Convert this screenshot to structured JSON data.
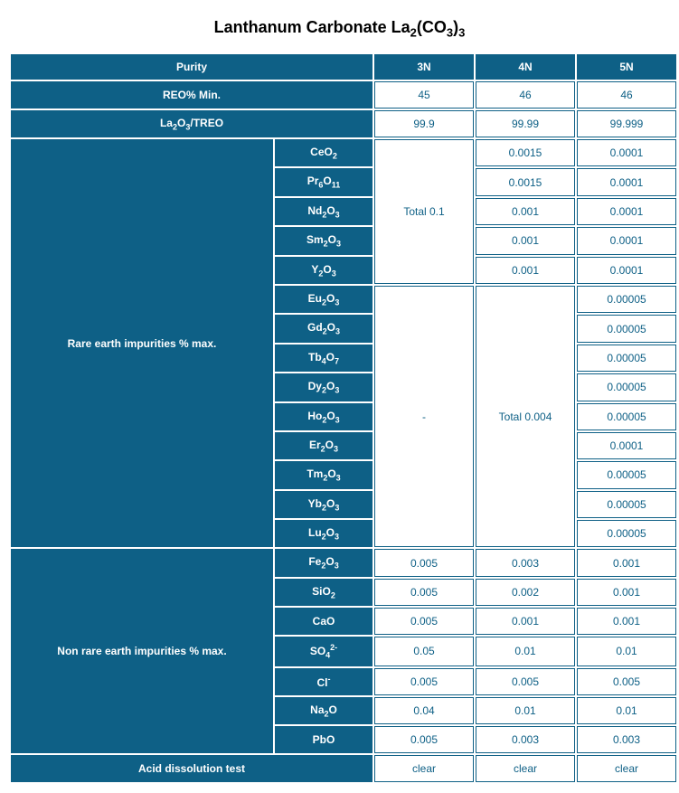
{
  "title_pre": "Lanthanum Carbonate  La",
  "title_sub1": "2",
  "title_mid": "(CO",
  "title_sub2": "3",
  "title_post": ")",
  "title_sub3": "3",
  "header": {
    "purity": "Purity",
    "c3n": "3N",
    "c4n": "4N",
    "c5n": "5N",
    "reo": "REO% Min.",
    "reo_3n": "45",
    "reo_4n": "46",
    "reo_5n": "46",
    "la2o3": "/TREO",
    "la_3n": "99.9",
    "la_4n": "99.99",
    "la_5n": "99.999"
  },
  "rare_label": "Rare earth impurities % max.",
  "total01": "Total 0.1",
  "dash": "-",
  "total0004": "Total 0.004",
  "rare": {
    "CeO2_4n": "0.0015",
    "CeO2_5n": "0.0001",
    "Pr6O11_4n": "0.0015",
    "Pr6O11_5n": "0.0001",
    "Nd2O3_4n": "0.001",
    "Nd2O3_5n": "0.0001",
    "Sm2O3_4n": "0.001",
    "Sm2O3_5n": "0.0001",
    "Y2O3_4n": "0.001",
    "Y2O3_5n": "0.0001",
    "Eu2O3_5n": "0.00005",
    "Gd2O3_5n": "0.00005",
    "Tb4O7_5n": "0.00005",
    "Dy2O3_5n": "0.00005",
    "Ho2O3_5n": "0.00005",
    "Er2O3_5n": "0.0001",
    "Tm2O3_5n": "0.00005",
    "Yb2O3_5n": "0.00005",
    "Lu2O3_5n": "0.00005"
  },
  "nonrare_label": "Non rare earth impurities % max.",
  "nonrare": {
    "Fe2O3_3n": "0.005",
    "Fe2O3_4n": "0.003",
    "Fe2O3_5n": "0.001",
    "SiO2_3n": "0.005",
    "SiO2_4n": "0.002",
    "SiO2_5n": "0.001",
    "CaO_3n": "0.005",
    "CaO_4n": "0.001",
    "CaO_5n": "0.001",
    "SO4_3n": "0.05",
    "SO4_4n": "0.01",
    "SO4_5n": "0.01",
    "Cl_3n": "0.005",
    "Cl_4n": "0.005",
    "Cl_5n": "0.005",
    "Na2O_3n": "0.04",
    "Na2O_4n": "0.01",
    "Na2O_5n": "0.01",
    "PbO_3n": "0.005",
    "PbO_4n": "0.003",
    "PbO_5n": "0.003"
  },
  "acid_label": "Acid dissolution test",
  "acid_3n": "clear",
  "acid_4n": "clear",
  "acid_5n": "clear",
  "colors": {
    "header_bg": "#0e6086",
    "header_fg": "#ffffff",
    "data_fg": "#0e6086",
    "data_bg": "#ffffff"
  }
}
